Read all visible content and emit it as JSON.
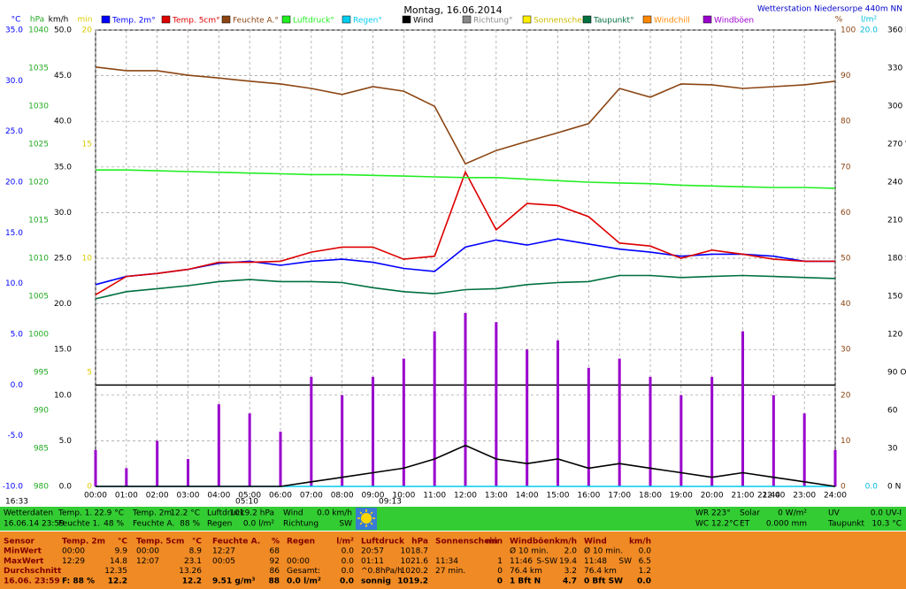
{
  "chart_data": {
    "type": "line",
    "title": "Montag, 16.06.2014",
    "subtitle": "Wetterstation Niedersorpe 440m NN",
    "axis_labels": {
      "c": "°C",
      "hpa": "hPa",
      "kmh": "km/h",
      "min": "min",
      "pct": "%",
      "lm2": "l/m²"
    },
    "xlim": [
      0,
      24
    ],
    "xticks": [
      {
        "value": 0,
        "label": "00:00"
      },
      {
        "value": 1,
        "label": "01:00"
      },
      {
        "value": 2,
        "label": "02:00"
      },
      {
        "value": 3,
        "label": "03:00"
      },
      {
        "value": 4,
        "label": "04:00"
      },
      {
        "value": 5,
        "label": "05:00"
      },
      {
        "value": 6,
        "label": "06:00"
      },
      {
        "value": 7,
        "label": "07:00"
      },
      {
        "value": 8,
        "label": "08:00"
      },
      {
        "value": 9,
        "label": "09:00"
      },
      {
        "value": 10,
        "label": "10:00"
      },
      {
        "value": 11,
        "label": "11:00"
      },
      {
        "value": 12,
        "label": "12:00"
      },
      {
        "value": 13,
        "label": "13:00"
      },
      {
        "value": 14,
        "label": "14:00"
      },
      {
        "value": 15,
        "label": "15:00"
      },
      {
        "value": 16,
        "label": "16:00"
      },
      {
        "value": 17,
        "label": "17:00"
      },
      {
        "value": 18,
        "label": "18:00"
      },
      {
        "value": 19,
        "label": "19:00"
      },
      {
        "value": 20,
        "label": "20:00"
      },
      {
        "value": 21,
        "label": "21:00"
      },
      {
        "value": 22,
        "label": "22:00"
      },
      {
        "value": 23,
        "label": "23:00"
      },
      {
        "value": 24,
        "label": "24:00"
      }
    ],
    "x": [
      0,
      1,
      2,
      3,
      4,
      5,
      6,
      7,
      8,
      9,
      10,
      11,
      12,
      13,
      14,
      15,
      16,
      17,
      18,
      19,
      20,
      21,
      22,
      23,
      24
    ],
    "ylim": [
      -10,
      35
    ],
    "yticks": [
      {
        "value": 35,
        "label": "35.0"
      },
      {
        "value": 30,
        "label": "30.0"
      },
      {
        "value": 25,
        "label": "25.0"
      },
      {
        "value": 20,
        "label": "20.0"
      },
      {
        "value": 15,
        "label": "15.0"
      },
      {
        "value": 10,
        "label": "10.0"
      },
      {
        "value": 5,
        "label": "5.0"
      },
      {
        "value": 0,
        "label": "0.0"
      },
      {
        "value": -5,
        "label": "-5.0"
      },
      {
        "value": -10,
        "label": "-10.0"
      }
    ],
    "hpa_lim": [
      980,
      1040
    ],
    "hpa_ticks": [
      1040,
      1035,
      1030,
      1025,
      1020,
      1015,
      1010,
      1005,
      1000,
      995,
      990,
      985,
      980
    ],
    "kmh_lim": [
      0,
      50
    ],
    "kmh_ticks": [
      {
        "value": 50,
        "label": "50.0"
      },
      {
        "value": 45,
        "label": "45.0"
      },
      {
        "value": 40,
        "label": "40.0"
      },
      {
        "value": 35,
        "label": "35.0"
      },
      {
        "value": 30,
        "label": "30.0"
      },
      {
        "value": 25,
        "label": "25.0"
      },
      {
        "value": 20,
        "label": "20.0"
      },
      {
        "value": 15,
        "label": "15.0"
      },
      {
        "value": 10,
        "label": "10.0"
      },
      {
        "value": 5,
        "label": "5.0"
      },
      {
        "value": 0,
        "label": "0.0"
      }
    ],
    "min_lim": [
      0,
      20
    ],
    "min_ticks": [
      20,
      15,
      10,
      5,
      0
    ],
    "y2lim": [
      0,
      100
    ],
    "y2ticks": [
      100,
      90,
      80,
      70,
      60,
      50,
      40,
      30,
      20,
      10,
      0
    ],
    "lm2_lim": [
      0,
      20
    ],
    "lm2_ticks": [
      {
        "value": 20,
        "label": "20.0"
      },
      {
        "value": 0,
        "label": "0.0"
      }
    ],
    "dir_lim": [
      0,
      360
    ],
    "dir_ticks": [
      {
        "value": 360,
        "label": "360 N"
      },
      {
        "value": 330,
        "label": "330"
      },
      {
        "value": 300,
        "label": "300"
      },
      {
        "value": 270,
        "label": "270 W"
      },
      {
        "value": 240,
        "label": "240"
      },
      {
        "value": 210,
        "label": "210"
      },
      {
        "value": 180,
        "label": "180 S"
      },
      {
        "value": 150,
        "label": "150"
      },
      {
        "value": 120,
        "label": "120"
      },
      {
        "value": 90,
        "label": "90 O"
      },
      {
        "value": 60,
        "label": "60"
      },
      {
        "value": 30,
        "label": "30"
      },
      {
        "value": 0,
        "label": "0 N"
      }
    ],
    "grid": true,
    "series": [
      {
        "name": "Temp. 2m°",
        "color": "#0000ff",
        "axis": "c",
        "mark": "line",
        "values": [
          9.9,
          10.7,
          11,
          11.4,
          12,
          12.2,
          11.8,
          12.2,
          12.4,
          12.1,
          11.5,
          11.2,
          13.6,
          14.3,
          13.8,
          14.4,
          13.9,
          13.4,
          13.1,
          12.7,
          12.9,
          12.9,
          12.7,
          12.2,
          12.2
        ]
      },
      {
        "name": "Temp. 5cm°",
        "color": "#dd0000",
        "axis": "c",
        "mark": "line",
        "values": [
          8.9,
          10.7,
          11,
          11.4,
          12.1,
          12.1,
          12.2,
          13.1,
          13.6,
          13.6,
          12.4,
          12.7,
          21,
          15.3,
          17.9,
          17.7,
          16.6,
          14,
          13.7,
          12.5,
          13.3,
          12.9,
          12.4,
          12.2,
          12.2
        ]
      },
      {
        "name": "Feuchte A.°",
        "color": "#8b4513",
        "axis": "pct",
        "mark": "line",
        "values": [
          91.9,
          91.1,
          91.1,
          90.1,
          89.5,
          88.8,
          88.2,
          87.2,
          85.9,
          87.6,
          86.6,
          83.3,
          70.7,
          73.6,
          75.6,
          77.5,
          79.5,
          87.2,
          85.3,
          88.2,
          88,
          87.2,
          87.6,
          88,
          88.8
        ]
      },
      {
        "name": "Luftdruck°",
        "color": "#22ee22",
        "axis": "hpa",
        "mark": "line",
        "values": [
          1021.6,
          1021.6,
          1021.5,
          1021.4,
          1021.3,
          1021.2,
          1021.1,
          1021,
          1021,
          1020.9,
          1020.8,
          1020.7,
          1020.6,
          1020.6,
          1020.4,
          1020.2,
          1020,
          1019.9,
          1019.8,
          1019.6,
          1019.5,
          1019.4,
          1019.3,
          1019.3,
          1019.2
        ]
      },
      {
        "name": "Regen°",
        "color": "#00ccee",
        "axis": "lm2",
        "mark": "line",
        "values": [
          0,
          0,
          0,
          0,
          0,
          0,
          0,
          0,
          0,
          0,
          0,
          0,
          0,
          0,
          0,
          0,
          0,
          0,
          0,
          0,
          0,
          0,
          0,
          0,
          0
        ]
      },
      {
        "name": "Wind",
        "color": "#000000",
        "axis": "kmh",
        "mark": "line",
        "values": [
          0,
          0,
          0,
          0,
          0,
          0,
          0,
          0.5,
          1,
          1.5,
          2,
          3,
          4.5,
          3,
          2.5,
          3,
          2,
          2.5,
          2,
          1.5,
          1,
          1.5,
          1,
          0.5,
          0
        ]
      },
      {
        "name": "Richtung°",
        "color": "#888888"
      },
      {
        "name": "Sonnenschein",
        "color": "#ffee00"
      },
      {
        "name": "Taupunkt°",
        "color": "#007040",
        "axis": "c",
        "mark": "line",
        "values": [
          8.5,
          9.2,
          9.5,
          9.8,
          10.2,
          10.4,
          10.2,
          10.2,
          10.1,
          9.6,
          9.2,
          9,
          9.4,
          9.5,
          9.9,
          10.1,
          10.2,
          10.8,
          10.8,
          10.6,
          10.7,
          10.8,
          10.7,
          10.6,
          10.5
        ]
      },
      {
        "name": "Windchill",
        "color": "#ff8800"
      },
      {
        "name": "Windböen",
        "color": "#9900cc",
        "axis": "kmh",
        "mark": "bar",
        "values": [
          4,
          2,
          5,
          3,
          9,
          8,
          6,
          12,
          10,
          12,
          14,
          17,
          19,
          18,
          15,
          16,
          13,
          14,
          12,
          10,
          12,
          17,
          10,
          8,
          4
        ]
      }
    ],
    "annotations": [
      "16:33",
      "05:10",
      "09:13",
      "21:44"
    ]
  },
  "status_bar": {
    "rows": [
      [
        [
          "Wetterdaten"
        ],
        [
          "Temp. 1.",
          "22.9 °C"
        ],
        [
          "Temp. 2m",
          "12.2 °C"
        ],
        [
          "Luftdruck",
          "1019.2 hPa"
        ],
        [
          "Wind",
          "0.0 km/h"
        ],
        [
          "WR 223°"
        ],
        [
          "Solar",
          "0 W/m²"
        ],
        [
          "UV",
          "0.0 UV-I"
        ]
      ],
      [
        [
          "16.06.14 23:59"
        ],
        [
          "Feuchte 1.",
          "48 %"
        ],
        [
          "Feuchte A.",
          "88 %"
        ],
        [
          "Regen",
          "0.0 l/m²"
        ],
        [
          "Richtung",
          "SW"
        ],
        [
          "WC 12.2°C"
        ],
        [
          "ET",
          "0.000 mm"
        ],
        [
          "Taupunkt",
          "10.3 °C"
        ]
      ]
    ]
  },
  "stats_table": {
    "header": [
      [
        "Sensor"
      ],
      [
        "Temp. 2m",
        "°C"
      ],
      [
        "Temp. 5cm",
        "°C"
      ],
      [
        "Feuchte A.",
        "%"
      ],
      [
        "Regen",
        "l/m²"
      ],
      [
        "Luftdruck",
        "hPa"
      ],
      [
        "Sonnenschein",
        "min"
      ],
      [
        "Windböen",
        "km/h"
      ],
      [
        "Wind",
        "km/h"
      ]
    ],
    "rows": [
      [
        [
          "MinWert"
        ],
        [
          "00:00",
          "9.9"
        ],
        [
          "00:00",
          "8.9"
        ],
        [
          "12:27",
          "68"
        ],
        [
          "0.0"
        ],
        [
          "20:57",
          "1018.7"
        ],
        [],
        [
          "Ø 10 min.",
          "2.0"
        ],
        [
          "Ø 10 min.",
          "0.0"
        ]
      ],
      [
        [
          "MaxWert"
        ],
        [
          "12:29",
          "14.8"
        ],
        [
          "12:07",
          "23.1"
        ],
        [
          "00:05",
          "92"
        ],
        [
          "00:00",
          "0.0"
        ],
        [
          "01:11",
          "1021.6"
        ],
        [
          "11:34",
          "1"
        ],
        [
          "11:46",
          "S-SW",
          "19.4"
        ],
        [
          "11:48",
          "SW",
          "6.5"
        ]
      ],
      [
        [
          "Durchschnitt"
        ],
        [
          "12.35"
        ],
        [
          "13.26"
        ],
        [
          "86"
        ],
        [
          "Gesamt:",
          "0.0"
        ],
        [
          "^0.8hPa/h",
          "1020.2"
        ],
        [
          "27 min.",
          "0"
        ],
        [
          "76.4 km",
          "3.2"
        ],
        [
          "76.4 km",
          "1.2"
        ]
      ],
      [
        [
          "16.06. 23:59"
        ],
        [
          "F: 88 %",
          "12.2"
        ],
        [
          "12.2"
        ],
        [
          "9.51 g/m³",
          "88"
        ],
        [
          "0.0 l/m²",
          "0.0"
        ],
        [
          "sonnig",
          "1019.2"
        ],
        [
          "0"
        ],
        [
          "1 Bft N",
          "4.7"
        ],
        [
          "0 Bft SW",
          "0.0"
        ]
      ]
    ]
  }
}
